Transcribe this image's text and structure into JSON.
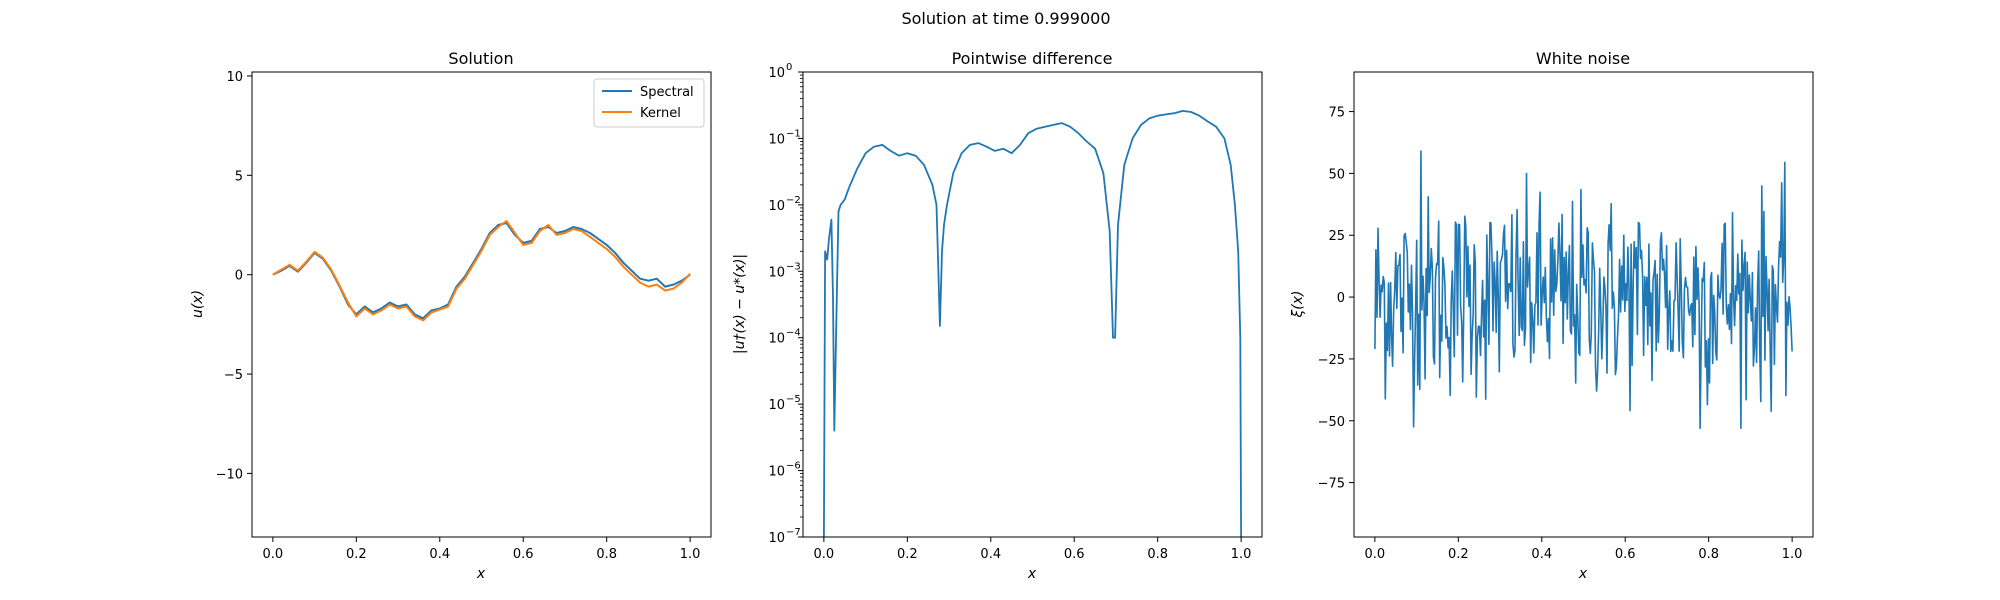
{
  "figure": {
    "suptitle": "Solution at time 0.999000"
  },
  "colors": {
    "series1": "#1f77b4",
    "series2": "#ff7f0e",
    "axes": "#000000",
    "legend_border": "#cccccc"
  },
  "chart_data": [
    {
      "type": "line",
      "title": "Solution",
      "xlabel": "x",
      "ylabel": "u(x)",
      "xlim": [
        -0.05,
        1.05
      ],
      "ylim": [
        -13.2,
        10.2
      ],
      "xticks": [
        0.0,
        0.2,
        0.4,
        0.6,
        0.8,
        1.0
      ],
      "xtick_labels": [
        "0.0",
        "0.2",
        "0.4",
        "0.6",
        "0.8",
        "1.0"
      ],
      "yticks": [
        -10,
        -5,
        0,
        5,
        10
      ],
      "ytick_labels": [
        "−10",
        "−5",
        "0",
        "5",
        "10"
      ],
      "legend": {
        "location": "top-right",
        "entries": [
          "Spectral",
          "Kernel"
        ]
      },
      "x": [
        0.0,
        0.02,
        0.04,
        0.06,
        0.08,
        0.1,
        0.12,
        0.14,
        0.16,
        0.18,
        0.2,
        0.22,
        0.24,
        0.26,
        0.28,
        0.3,
        0.32,
        0.34,
        0.36,
        0.38,
        0.4,
        0.42,
        0.44,
        0.46,
        0.48,
        0.5,
        0.52,
        0.54,
        0.56,
        0.58,
        0.6,
        0.62,
        0.64,
        0.66,
        0.68,
        0.7,
        0.72,
        0.74,
        0.76,
        0.78,
        0.8,
        0.82,
        0.84,
        0.86,
        0.88,
        0.9,
        0.92,
        0.94,
        0.96,
        0.98,
        1.0
      ],
      "series": [
        {
          "name": "Spectral",
          "color": "#1f77b4",
          "values": [
            0.0,
            0.2,
            0.45,
            0.15,
            0.6,
            1.1,
            0.8,
            0.2,
            -0.6,
            -1.5,
            -2.0,
            -1.6,
            -1.9,
            -1.7,
            -1.4,
            -1.6,
            -1.5,
            -2.0,
            -2.2,
            -1.8,
            -1.7,
            -1.5,
            -0.6,
            -0.1,
            0.6,
            1.3,
            2.1,
            2.5,
            2.6,
            2.0,
            1.6,
            1.7,
            2.3,
            2.4,
            2.1,
            2.2,
            2.4,
            2.3,
            2.1,
            1.8,
            1.5,
            1.1,
            0.6,
            0.2,
            -0.2,
            -0.3,
            -0.2,
            -0.6,
            -0.5,
            -0.3,
            0.0
          ]
        },
        {
          "name": "Kernel",
          "color": "#ff7f0e",
          "values": [
            0.0,
            0.25,
            0.5,
            0.2,
            0.65,
            1.15,
            0.85,
            0.25,
            -0.55,
            -1.4,
            -2.1,
            -1.7,
            -2.0,
            -1.8,
            -1.5,
            -1.7,
            -1.6,
            -2.1,
            -2.3,
            -1.9,
            -1.75,
            -1.6,
            -0.7,
            -0.2,
            0.5,
            1.2,
            2.0,
            2.4,
            2.7,
            2.1,
            1.5,
            1.6,
            2.2,
            2.5,
            2.0,
            2.1,
            2.3,
            2.2,
            1.9,
            1.6,
            1.3,
            0.9,
            0.4,
            0.0,
            -0.4,
            -0.6,
            -0.5,
            -0.8,
            -0.7,
            -0.4,
            0.05
          ]
        }
      ]
    },
    {
      "type": "line",
      "title": "Pointwise difference",
      "xlabel": "x",
      "ylabel": "|u†(x) − u*(x)|",
      "yscale": "log",
      "xlim": [
        -0.05,
        1.05
      ],
      "ylim": [
        1e-07,
        1.0
      ],
      "xticks": [
        0.0,
        0.2,
        0.4,
        0.6,
        0.8,
        1.0
      ],
      "xtick_labels": [
        "0.0",
        "0.2",
        "0.4",
        "0.6",
        "0.8",
        "1.0"
      ],
      "ytick_exponents": [
        -7,
        -6,
        -5,
        -4,
        -3,
        -2,
        -1,
        0
      ],
      "x": [
        0.0,
        0.003,
        0.008,
        0.012,
        0.018,
        0.022,
        0.025,
        0.03,
        0.035,
        0.04,
        0.05,
        0.06,
        0.08,
        0.1,
        0.12,
        0.14,
        0.16,
        0.18,
        0.2,
        0.22,
        0.24,
        0.26,
        0.27,
        0.278,
        0.283,
        0.288,
        0.295,
        0.31,
        0.33,
        0.35,
        0.37,
        0.39,
        0.41,
        0.43,
        0.45,
        0.47,
        0.49,
        0.51,
        0.53,
        0.55,
        0.57,
        0.59,
        0.61,
        0.63,
        0.65,
        0.67,
        0.685,
        0.693,
        0.698,
        0.705,
        0.72,
        0.74,
        0.76,
        0.78,
        0.8,
        0.82,
        0.84,
        0.86,
        0.88,
        0.9,
        0.92,
        0.94,
        0.96,
        0.975,
        0.985,
        0.993,
        0.998,
        1.0
      ],
      "series": [
        {
          "color": "#1f77b4",
          "values": [
            1e-07,
            0.002,
            0.0015,
            0.003,
            0.006,
            0.0004,
            4e-06,
            0.0002,
            0.008,
            0.01,
            0.012,
            0.018,
            0.035,
            0.06,
            0.075,
            0.08,
            0.065,
            0.055,
            0.06,
            0.055,
            0.04,
            0.02,
            0.01,
            0.00015,
            0.002,
            0.005,
            0.01,
            0.03,
            0.06,
            0.08,
            0.085,
            0.075,
            0.065,
            0.07,
            0.06,
            0.08,
            0.12,
            0.14,
            0.15,
            0.16,
            0.17,
            0.15,
            0.12,
            0.09,
            0.07,
            0.03,
            0.004,
            0.0001,
            0.0001,
            0.005,
            0.04,
            0.1,
            0.16,
            0.2,
            0.22,
            0.23,
            0.24,
            0.26,
            0.25,
            0.22,
            0.18,
            0.15,
            0.1,
            0.04,
            0.01,
            0.002,
            0.0001,
            1e-07
          ]
        }
      ]
    },
    {
      "type": "line",
      "title": "White noise",
      "xlabel": "x",
      "ylabel": "ξ(x)",
      "xlim": [
        -0.05,
        1.05
      ],
      "ylim": [
        -97,
        91
      ],
      "xticks": [
        0.0,
        0.2,
        0.4,
        0.6,
        0.8,
        1.0
      ],
      "xtick_labels": [
        "0.0",
        "0.2",
        "0.4",
        "0.6",
        "0.8",
        "1.0"
      ],
      "yticks": [
        -75,
        -50,
        -25,
        0,
        25,
        50,
        75
      ],
      "ytick_labels": [
        "−75",
        "−50",
        "−25",
        "0",
        "25",
        "50",
        "75"
      ],
      "series": [
        {
          "color": "#1f77b4",
          "count": 400,
          "amplitude": 20,
          "min": -53,
          "max": 59,
          "start": -21,
          "end": -22
        }
      ]
    }
  ]
}
